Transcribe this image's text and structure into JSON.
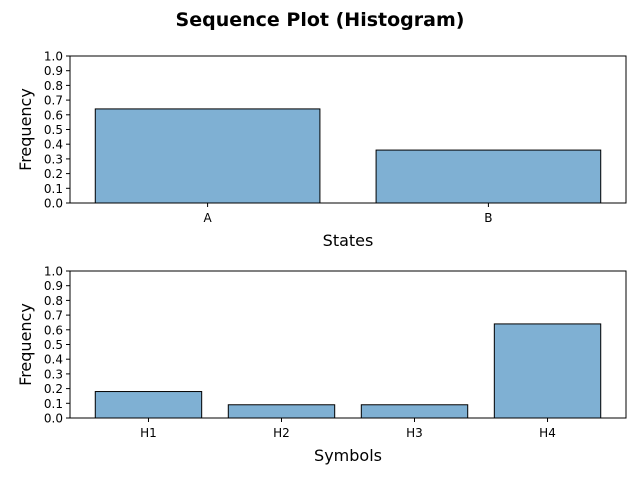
{
  "figure": {
    "title": "Sequence Plot (Histogram)"
  },
  "chart_data": [
    {
      "type": "bar",
      "categories": [
        "A",
        "B"
      ],
      "values": [
        0.64,
        0.36
      ],
      "xlabel": "States",
      "ylabel": "Frequency",
      "ylim": [
        0,
        1.0
      ],
      "yticks": [
        "0.0",
        "0.1",
        "0.2",
        "0.3",
        "0.4",
        "0.5",
        "0.6",
        "0.7",
        "0.8",
        "0.9",
        "1.0"
      ],
      "bar_color": "#7fb0d3",
      "edge_color": "#000000",
      "grid": false
    },
    {
      "type": "bar",
      "categories": [
        "H1",
        "H2",
        "H3",
        "H4"
      ],
      "values": [
        0.18,
        0.09,
        0.09,
        0.64
      ],
      "xlabel": "Symbols",
      "ylabel": "Frequency",
      "ylim": [
        0,
        1.0
      ],
      "yticks": [
        "0.0",
        "0.1",
        "0.2",
        "0.3",
        "0.4",
        "0.5",
        "0.6",
        "0.7",
        "0.8",
        "0.9",
        "1.0"
      ],
      "bar_color": "#7fb0d3",
      "edge_color": "#000000",
      "grid": false
    }
  ]
}
